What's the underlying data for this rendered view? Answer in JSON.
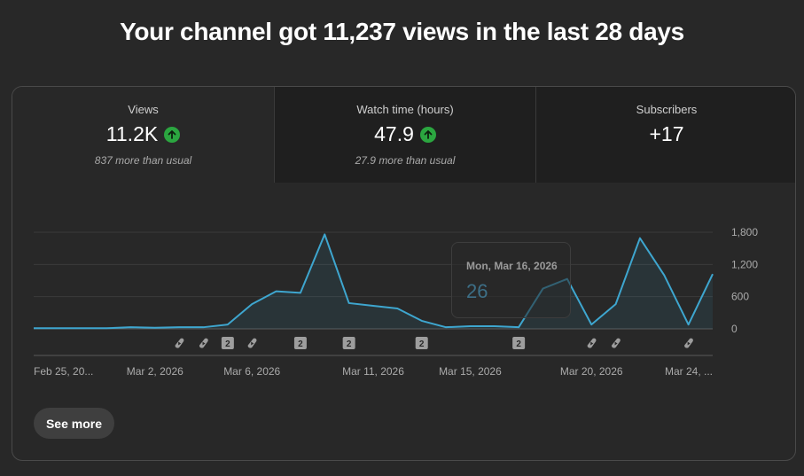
{
  "headline": "Your channel got 11,237 views in the last 28 days",
  "tabs": [
    {
      "label": "Views",
      "value": "11.2K",
      "trend": "up",
      "sub": "837 more than usual"
    },
    {
      "label": "Watch time (hours)",
      "value": "47.9",
      "trend": "up",
      "sub": "27.9 more than usual"
    },
    {
      "label": "Subscribers",
      "value": "+17",
      "trend": "",
      "sub": ""
    }
  ],
  "tooltip": {
    "date": "Mon, Mar 16, 2026",
    "value": "26"
  },
  "see_more_label": "See more",
  "colors": {
    "line": "#3ea6cf",
    "up_badge": "#2ba640",
    "tooltip_value": "#3d6f87"
  },
  "chart_data": {
    "type": "area",
    "title": "",
    "xlabel": "",
    "ylabel": "",
    "ylim": [
      0,
      1800
    ],
    "y_ticks": [
      "1,800",
      "1,200",
      "600",
      "0"
    ],
    "y_tick_values": [
      1800,
      1200,
      600,
      0
    ],
    "x_tick_labels": [
      "Feb 25, 20...",
      "Mar 2, 2026",
      "Mar 6, 2026",
      "Mar 11, 2026",
      "Mar 15, 2026",
      "Mar 20, 2026",
      "Mar 24, ..."
    ],
    "x_tick_days": [
      0,
      5,
      9,
      14,
      18,
      23,
      27
    ],
    "series": [
      {
        "values": [
          12,
          12,
          12,
          12,
          30,
          20,
          30,
          30,
          80,
          460,
          700,
          670,
          1760,
          480,
          430,
          380,
          150,
          30,
          50,
          50,
          30,
          750,
          930,
          80,
          460,
          1690,
          1000,
          80,
          1020
        ]
      }
    ],
    "markers": [
      {
        "day": 6,
        "type": "shorts-icon"
      },
      {
        "day": 7,
        "type": "shorts-icon"
      },
      {
        "day": 8,
        "type": "count",
        "label": "2"
      },
      {
        "day": 9,
        "type": "shorts-icon"
      },
      {
        "day": 11,
        "type": "count",
        "label": "2"
      },
      {
        "day": 13,
        "type": "count",
        "label": "2"
      },
      {
        "day": 16,
        "type": "count",
        "label": "2"
      },
      {
        "day": 20,
        "type": "count",
        "label": "2"
      },
      {
        "day": 23,
        "type": "shorts-icon"
      },
      {
        "day": 24,
        "type": "shorts-icon"
      },
      {
        "day": 27,
        "type": "shorts-icon"
      }
    ]
  }
}
